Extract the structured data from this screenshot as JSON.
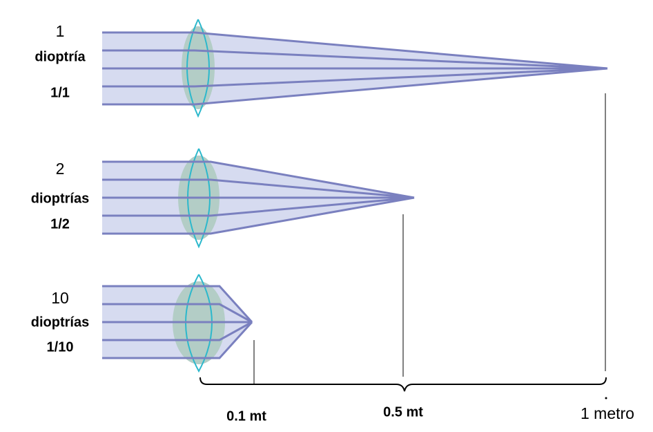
{
  "lenses": [
    {
      "power": "1",
      "unit": "dioptría",
      "fraction": "1/1"
    },
    {
      "power": "2",
      "unit": "dioptrías",
      "fraction": "1/2"
    },
    {
      "power": "10",
      "unit": "dioptrías",
      "fraction": "1/10"
    }
  ],
  "distances": [
    "0.1 mt",
    "0.5 mt",
    "1 metro"
  ]
}
